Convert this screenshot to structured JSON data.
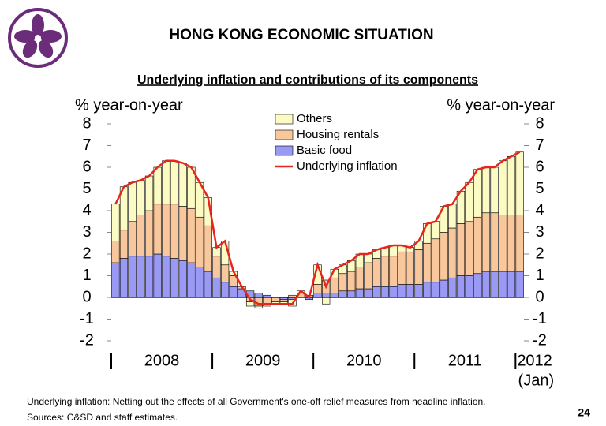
{
  "header": {
    "title": "HONG KONG ECONOMIC SITUATION"
  },
  "chart_data": {
    "type": "bar",
    "stacked": true,
    "title": "Underlying inflation and contributions of its components",
    "y_label": "% year-on-year",
    "y2_label": "% year-on-year",
    "categories": [
      null,
      null,
      null,
      null,
      null,
      "2008",
      null,
      null,
      null,
      null,
      null,
      null,
      null,
      null,
      null,
      null,
      null,
      "2009",
      null,
      null,
      null,
      null,
      null,
      null,
      null,
      null,
      null,
      null,
      null,
      "2010",
      null,
      null,
      null,
      null,
      null,
      null,
      null,
      null,
      null,
      null,
      null,
      "2011",
      null,
      null,
      null,
      null,
      null,
      null,
      "2012"
    ],
    "x_note": "(Jan)",
    "ylim": [
      -2,
      8
    ],
    "yticks": [
      -2,
      -1,
      0,
      1,
      2,
      3,
      4,
      5,
      6,
      7,
      8
    ],
    "y2lim": [
      -2,
      8
    ],
    "y2ticks": [
      -2,
      -1,
      0,
      1,
      2,
      3,
      4,
      5,
      6,
      7,
      8
    ],
    "series": [
      {
        "name": "Basic food",
        "color": "#9a9af5",
        "values": [
          1.6,
          1.8,
          1.9,
          1.9,
          1.9,
          2.0,
          1.9,
          1.8,
          1.7,
          1.6,
          1.4,
          1.2,
          0.9,
          0.7,
          0.5,
          0.4,
          0.3,
          0.2,
          0.1,
          0.0,
          -0.1,
          -0.1,
          0.0,
          -0.1,
          0.2,
          0.2,
          0.2,
          0.3,
          0.3,
          0.4,
          0.4,
          0.5,
          0.5,
          0.5,
          0.6,
          0.6,
          0.6,
          0.7,
          0.7,
          0.8,
          0.9,
          1.0,
          1.0,
          1.1,
          1.2,
          1.2,
          1.2,
          1.2,
          1.2
        ]
      },
      {
        "name": "Housing rentals",
        "color": "#f9c79c",
        "values": [
          1.0,
          1.3,
          1.6,
          1.9,
          2.1,
          2.3,
          2.4,
          2.5,
          2.5,
          2.5,
          2.3,
          2.1,
          1.0,
          0.8,
          0.5,
          0.1,
          -0.2,
          -0.4,
          -0.3,
          -0.2,
          -0.1,
          0.1,
          0.2,
          0.1,
          0.4,
          0.6,
          0.7,
          0.8,
          0.9,
          1.0,
          1.2,
          1.3,
          1.4,
          1.4,
          1.5,
          1.5,
          1.6,
          1.8,
          2.0,
          2.2,
          2.3,
          2.4,
          2.5,
          2.6,
          2.7,
          2.7,
          2.6,
          2.6,
          2.6
        ]
      },
      {
        "name": "Others",
        "color": "#fdfbc4",
        "values": [
          1.7,
          2.0,
          1.8,
          1.6,
          1.6,
          1.7,
          2.0,
          2.0,
          2.0,
          1.9,
          1.6,
          1.3,
          0.4,
          1.1,
          0.2,
          0.0,
          -0.2,
          -0.1,
          -0.1,
          -0.1,
          -0.1,
          -0.3,
          0.1,
          0.0,
          0.9,
          -0.3,
          0.4,
          0.4,
          0.5,
          0.6,
          0.4,
          0.4,
          0.4,
          0.5,
          0.3,
          0.2,
          0.4,
          0.9,
          0.8,
          1.2,
          1.1,
          1.5,
          1.8,
          2.2,
          2.1,
          2.1,
          2.5,
          2.7,
          2.9
        ]
      },
      {
        "name": "Underlying inflation",
        "type": "line",
        "color": "#e4261d",
        "values": [
          4.3,
          5.1,
          5.3,
          5.4,
          5.6,
          6.0,
          6.3,
          6.3,
          6.2,
          6.0,
          5.3,
          4.6,
          2.3,
          2.6,
          1.2,
          0.5,
          -0.1,
          -0.3,
          -0.3,
          -0.3,
          -0.3,
          -0.3,
          0.3,
          0.0,
          1.5,
          0.5,
          1.3,
          1.5,
          1.7,
          2.0,
          2.0,
          2.2,
          2.3,
          2.4,
          2.4,
          2.3,
          2.6,
          3.4,
          3.5,
          4.2,
          4.3,
          4.9,
          5.3,
          5.9,
          6.0,
          6.0,
          6.3,
          6.5,
          6.7
        ]
      }
    ],
    "legend_order": [
      2,
      1,
      0,
      3
    ],
    "legend": "top"
  },
  "footer": {
    "notes": [
      "Underlying inflation: Netting out the effects of all Government's one-off relief measures from headline inflation.",
      "Sources: C&SD and staff estimates."
    ],
    "page_number": "24"
  }
}
